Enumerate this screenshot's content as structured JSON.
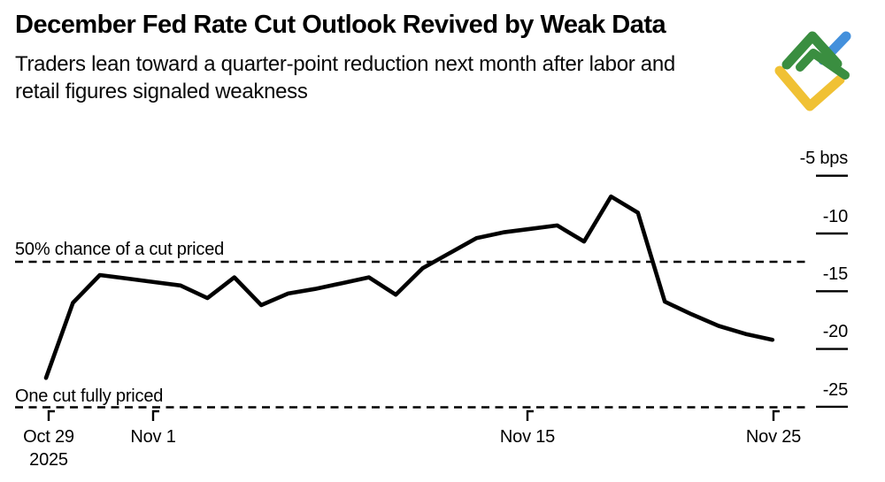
{
  "header": {
    "title": "December Fed Rate Cut Outlook Revived by Weak Data",
    "subtitle_line1": "Traders lean toward a quarter-point reduction next month after labor and",
    "subtitle_line2": "retail figures signaled weakness"
  },
  "brand": {
    "logo_name": "litefinance-mark",
    "colors": {
      "green": "#3A8E40",
      "yellow": "#F0C134",
      "blue": "#4390DC"
    }
  },
  "annotations": {
    "fifty": {
      "label": "50% chance of a cut priced",
      "value_bps": -12.5
    },
    "one_cut": {
      "label": "One cut fully priced",
      "value_bps": -25
    }
  },
  "axis": {
    "y_unit": "bps",
    "y_ticks": [
      {
        "label": "-5 bps",
        "value": -5
      },
      {
        "label": "-10",
        "value": -10
      },
      {
        "label": "-15",
        "value": -15
      },
      {
        "label": "-20",
        "value": -20
      },
      {
        "label": "-25",
        "value": -25
      }
    ],
    "x_ticks": [
      {
        "label": "Oct 29",
        "sublabel": "2025"
      },
      {
        "label": "Nov 1",
        "sublabel": ""
      },
      {
        "label": "Nov 15",
        "sublabel": ""
      },
      {
        "label": "Nov 25",
        "sublabel": ""
      }
    ]
  },
  "chart_data": {
    "type": "line",
    "title": "December Fed Rate Cut Outlook Revived by Weak Data",
    "subtitle": "Traders lean toward a quarter-point reduction next month after labor and retail figures signaled weakness",
    "x": [
      "Oct 29",
      "Oct 30",
      "Oct 31",
      "Nov 1",
      "Nov 2",
      "Nov 3",
      "Nov 4",
      "Nov 5",
      "Nov 6",
      "Nov 7",
      "Nov 8",
      "Nov 9",
      "Nov 10",
      "Nov 11",
      "Nov 12",
      "Nov 13",
      "Nov 14",
      "Nov 15",
      "Nov 16",
      "Nov 17",
      "Nov 18",
      "Nov 19",
      "Nov 20",
      "Nov 21",
      "Nov 22",
      "Nov 23",
      "Nov 24",
      "Nov 25"
    ],
    "series": [
      {
        "name": "bps",
        "values": [
          -22.5,
          -16.0,
          -13.6,
          -13.9,
          -14.2,
          -14.5,
          -15.6,
          -13.8,
          -16.2,
          -15.2,
          -14.8,
          -14.3,
          -13.8,
          -15.3,
          -13.0,
          -11.7,
          -10.4,
          -9.9,
          -9.6,
          -9.3,
          -10.7,
          -6.8,
          -8.2,
          -15.9,
          -17.0,
          -18.0,
          -18.7,
          -19.2
        ]
      }
    ],
    "ylabel": "bps",
    "ylim": [
      -27,
      -4
    ],
    "yticks_values": [
      -5,
      -10,
      -15,
      -20,
      -25
    ],
    "grid": false,
    "legend": "none",
    "line_color": "#000000",
    "reference_lines": [
      {
        "label": "50% chance of a cut priced",
        "y": -12.5,
        "style": "dashed"
      },
      {
        "label": "One cut fully priced",
        "y": -25,
        "style": "dashed"
      }
    ]
  }
}
